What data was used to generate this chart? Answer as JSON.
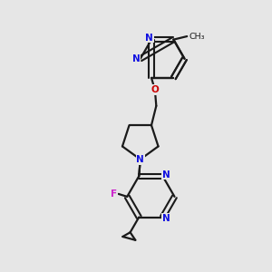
{
  "bg_color": "#e6e6e6",
  "bond_color": "#1a1a1a",
  "n_color": "#1010e0",
  "o_color": "#cc0000",
  "f_color": "#cc22cc",
  "text_color": "#1a1a1a",
  "lw": 1.6,
  "dlw": 1.5,
  "dgap": 0.09,
  "fs": 7.5,
  "figsize": [
    3.0,
    3.0
  ],
  "dpi": 100,
  "xlim": [
    0,
    10
  ],
  "ylim": [
    0,
    10
  ]
}
